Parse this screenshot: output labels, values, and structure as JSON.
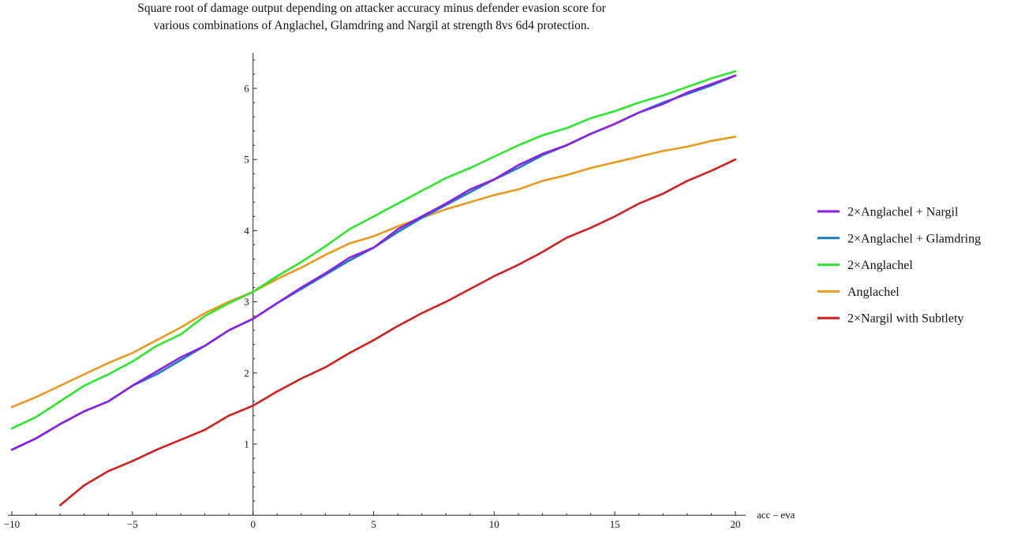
{
  "chart_data": {
    "type": "line",
    "title": [
      "Square root of damage output depending on attacker accuracy minus defender evasion score for",
      "various combinations of Anglachel, Glamdring and Nargil at strength 8vs 6d4 protection."
    ],
    "xlabel": "acc – eva",
    "ylabel": "",
    "xlim": [
      -10.1,
      20.5
    ],
    "ylim": [
      -0.1,
      6.5
    ],
    "x_ticks": [
      -10,
      -5,
      0,
      5,
      10,
      15,
      20
    ],
    "x_tick_labels": [
      "−10",
      "−5",
      "0",
      "5",
      "10",
      "15",
      "20"
    ],
    "y_ticks": [
      1,
      2,
      3,
      4,
      5,
      6
    ],
    "y_tick_labels": [
      "1",
      "2",
      "3",
      "4",
      "5",
      "6"
    ],
    "grid": false,
    "legend_position": "right",
    "x": [
      -10,
      -9,
      -8,
      -7,
      -6,
      -5,
      -4,
      -3,
      -2,
      -1,
      0,
      1,
      2,
      3,
      4,
      5,
      6,
      7,
      8,
      9,
      10,
      11,
      12,
      13,
      14,
      15,
      16,
      17,
      18,
      19,
      20
    ],
    "series": [
      {
        "name": "2×Anglachel + Nargil",
        "color": "#8a1ee6",
        "values": [
          0.92,
          1.08,
          1.28,
          1.46,
          1.6,
          1.82,
          2.02,
          2.22,
          2.38,
          2.6,
          2.76,
          2.98,
          3.2,
          3.4,
          3.62,
          3.76,
          4.02,
          4.2,
          4.38,
          4.58,
          4.72,
          4.92,
          5.08,
          5.2,
          5.36,
          5.5,
          5.66,
          5.78,
          5.94,
          6.06,
          6.18
        ]
      },
      {
        "name": "2×Anglachel + Glamdring",
        "color": "#1f7abf",
        "values": [
          0.92,
          1.08,
          1.28,
          1.46,
          1.6,
          1.82,
          1.98,
          2.18,
          2.38,
          2.6,
          2.76,
          2.98,
          3.18,
          3.38,
          3.58,
          3.76,
          3.98,
          4.18,
          4.36,
          4.54,
          4.72,
          4.88,
          5.06,
          5.2,
          5.36,
          5.5,
          5.66,
          5.8,
          5.92,
          6.04,
          6.18
        ]
      },
      {
        "name": "2×Anglachel",
        "color": "#2de62d",
        "values": [
          1.22,
          1.38,
          1.6,
          1.82,
          1.98,
          2.16,
          2.38,
          2.54,
          2.8,
          2.98,
          3.14,
          3.36,
          3.56,
          3.78,
          4.02,
          4.2,
          4.38,
          4.56,
          4.74,
          4.88,
          5.04,
          5.2,
          5.34,
          5.44,
          5.58,
          5.68,
          5.8,
          5.9,
          6.02,
          6.14,
          6.24
        ]
      },
      {
        "name": "Anglachel",
        "color": "#e89a20",
        "values": [
          1.52,
          1.66,
          1.82,
          1.98,
          2.14,
          2.28,
          2.46,
          2.64,
          2.84,
          3.0,
          3.14,
          3.32,
          3.48,
          3.66,
          3.82,
          3.92,
          4.06,
          4.18,
          4.3,
          4.4,
          4.5,
          4.58,
          4.7,
          4.78,
          4.88,
          4.96,
          5.04,
          5.12,
          5.18,
          5.26,
          5.32
        ]
      },
      {
        "name": "2×Nargil with Subtlety",
        "color": "#d11f1f",
        "x": [
          -8,
          -7,
          -6,
          -5,
          -4,
          -3,
          -2,
          -1,
          0,
          1,
          2,
          3,
          4,
          5,
          6,
          7,
          8,
          9,
          10,
          11,
          12,
          13,
          14,
          15,
          16,
          17,
          18,
          19,
          20
        ],
        "values": [
          0.14,
          0.42,
          0.62,
          0.76,
          0.92,
          1.06,
          1.2,
          1.4,
          1.54,
          1.74,
          1.92,
          2.08,
          2.28,
          2.46,
          2.66,
          2.84,
          3.0,
          3.18,
          3.36,
          3.52,
          3.7,
          3.9,
          4.04,
          4.2,
          4.38,
          4.52,
          4.7,
          4.84,
          5.0
        ]
      }
    ]
  }
}
